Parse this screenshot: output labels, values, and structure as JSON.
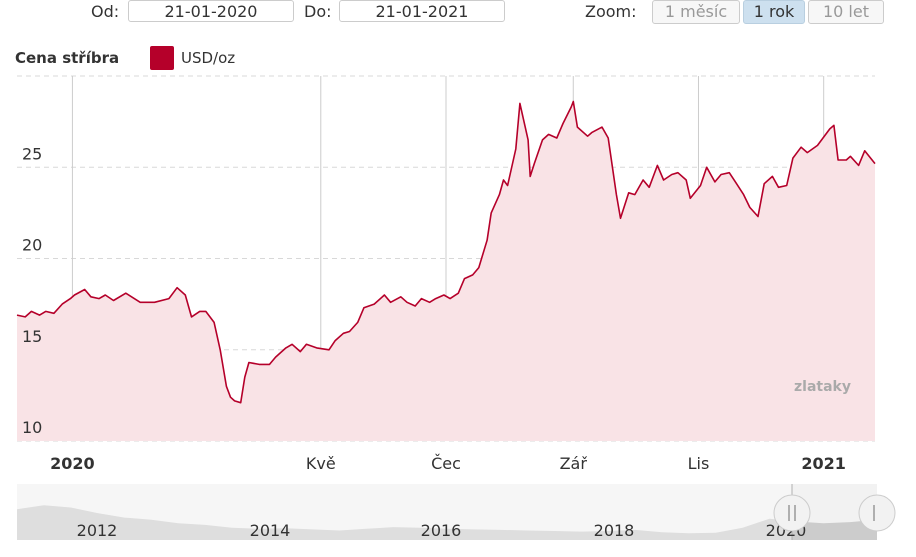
{
  "header": {
    "from_label": "Od:",
    "from_value": "21-01-2020",
    "to_label": "Do:",
    "to_value": "21-01-2021",
    "zoom_label": "Zoom:",
    "zoom_buttons": [
      {
        "label": "1 měsíc",
        "active": false
      },
      {
        "label": "1 rok",
        "active": true
      },
      {
        "label": "10 let",
        "active": false
      }
    ]
  },
  "legend": {
    "title": "Cena stříbra",
    "series_label": "USD/oz"
  },
  "watermark": "zlataky",
  "colors": {
    "line": "#b5002a",
    "fill": "#f9e3e6",
    "navigator_fill": "#cccccc"
  },
  "chart_data": {
    "type": "area",
    "series": [
      {
        "name": "USD/oz"
      }
    ],
    "yticks": [
      "10",
      "15",
      "20",
      "25"
    ],
    "ylim": [
      10,
      30
    ],
    "xlim": [
      "2019-12-05",
      "2021-01-26"
    ],
    "xticks": [
      {
        "date": "2020-01-01",
        "label": "2020",
        "bold": true
      },
      {
        "date": "2020-05-01",
        "label": "Kvě",
        "bold": false
      },
      {
        "date": "2020-07-01",
        "label": "Čec",
        "bold": false
      },
      {
        "date": "2020-09-01",
        "label": "Zář",
        "bold": false
      },
      {
        "date": "2020-11-01",
        "label": "Lis",
        "bold": false
      },
      {
        "date": "2021-01-01",
        "label": "2021",
        "bold": true
      }
    ],
    "grid": true,
    "legend_position": "top-left",
    "points": [
      [
        "2019-12-05",
        16.9
      ],
      [
        "2019-12-09",
        16.8
      ],
      [
        "2019-12-12",
        17.1
      ],
      [
        "2019-12-16",
        16.9
      ],
      [
        "2019-12-19",
        17.1
      ],
      [
        "2019-12-23",
        17.0
      ],
      [
        "2019-12-27",
        17.5
      ],
      [
        "2019-12-31",
        17.8
      ],
      [
        "2020-01-02",
        18.0
      ],
      [
        "2020-01-07",
        18.3
      ],
      [
        "2020-01-10",
        17.9
      ],
      [
        "2020-01-14",
        17.8
      ],
      [
        "2020-01-17",
        18.0
      ],
      [
        "2020-01-21",
        17.7
      ],
      [
        "2020-01-27",
        18.1
      ],
      [
        "2020-02-03",
        17.6
      ],
      [
        "2020-02-10",
        17.6
      ],
      [
        "2020-02-17",
        17.8
      ],
      [
        "2020-02-21",
        18.4
      ],
      [
        "2020-02-25",
        18.0
      ],
      [
        "2020-02-28",
        16.8
      ],
      [
        "2020-03-03",
        17.1
      ],
      [
        "2020-03-06",
        17.1
      ],
      [
        "2020-03-10",
        16.5
      ],
      [
        "2020-03-13",
        15.0
      ],
      [
        "2020-03-16",
        13.0
      ],
      [
        "2020-03-18",
        12.4
      ],
      [
        "2020-03-20",
        12.2
      ],
      [
        "2020-03-23",
        12.1
      ],
      [
        "2020-03-25",
        13.5
      ],
      [
        "2020-03-27",
        14.3
      ],
      [
        "2020-04-01",
        14.2
      ],
      [
        "2020-04-06",
        14.2
      ],
      [
        "2020-04-09",
        14.6
      ],
      [
        "2020-04-14",
        15.1
      ],
      [
        "2020-04-17",
        15.3
      ],
      [
        "2020-04-21",
        14.9
      ],
      [
        "2020-04-24",
        15.3
      ],
      [
        "2020-04-29",
        15.1
      ],
      [
        "2020-05-05",
        15.0
      ],
      [
        "2020-05-08",
        15.5
      ],
      [
        "2020-05-12",
        15.9
      ],
      [
        "2020-05-15",
        16.0
      ],
      [
        "2020-05-19",
        16.5
      ],
      [
        "2020-05-22",
        17.3
      ],
      [
        "2020-05-27",
        17.5
      ],
      [
        "2020-06-01",
        18.0
      ],
      [
        "2020-06-04",
        17.6
      ],
      [
        "2020-06-09",
        17.9
      ],
      [
        "2020-06-12",
        17.6
      ],
      [
        "2020-06-16",
        17.4
      ],
      [
        "2020-06-19",
        17.8
      ],
      [
        "2020-06-23",
        17.6
      ],
      [
        "2020-06-26",
        17.8
      ],
      [
        "2020-06-30",
        18.0
      ],
      [
        "2020-07-03",
        17.8
      ],
      [
        "2020-07-07",
        18.1
      ],
      [
        "2020-07-10",
        18.9
      ],
      [
        "2020-07-14",
        19.1
      ],
      [
        "2020-07-17",
        19.5
      ],
      [
        "2020-07-21",
        21.0
      ],
      [
        "2020-07-23",
        22.5
      ],
      [
        "2020-07-27",
        23.5
      ],
      [
        "2020-07-29",
        24.3
      ],
      [
        "2020-07-31",
        24.0
      ],
      [
        "2020-08-04",
        26.0
      ],
      [
        "2020-08-06",
        28.5
      ],
      [
        "2020-08-10",
        26.5
      ],
      [
        "2020-08-11",
        24.5
      ],
      [
        "2020-08-13",
        25.2
      ],
      [
        "2020-08-17",
        26.5
      ],
      [
        "2020-08-20",
        26.8
      ],
      [
        "2020-08-24",
        26.6
      ],
      [
        "2020-08-27",
        27.4
      ],
      [
        "2020-08-31",
        28.3
      ],
      [
        "2020-09-01",
        28.6
      ],
      [
        "2020-09-03",
        27.2
      ],
      [
        "2020-09-08",
        26.7
      ],
      [
        "2020-09-10",
        26.9
      ],
      [
        "2020-09-15",
        27.2
      ],
      [
        "2020-09-18",
        26.6
      ],
      [
        "2020-09-22",
        23.5
      ],
      [
        "2020-09-24",
        22.2
      ],
      [
        "2020-09-28",
        23.6
      ],
      [
        "2020-10-01",
        23.5
      ],
      [
        "2020-10-05",
        24.3
      ],
      [
        "2020-10-08",
        23.9
      ],
      [
        "2020-10-12",
        25.1
      ],
      [
        "2020-10-15",
        24.3
      ],
      [
        "2020-10-19",
        24.6
      ],
      [
        "2020-10-22",
        24.7
      ],
      [
        "2020-10-26",
        24.3
      ],
      [
        "2020-10-28",
        23.3
      ],
      [
        "2020-11-02",
        24.0
      ],
      [
        "2020-11-05",
        25.0
      ],
      [
        "2020-11-09",
        24.2
      ],
      [
        "2020-11-12",
        24.6
      ],
      [
        "2020-11-16",
        24.7
      ],
      [
        "2020-11-19",
        24.2
      ],
      [
        "2020-11-23",
        23.5
      ],
      [
        "2020-11-26",
        22.8
      ],
      [
        "2020-11-30",
        22.3
      ],
      [
        "2020-12-03",
        24.1
      ],
      [
        "2020-12-07",
        24.5
      ],
      [
        "2020-12-10",
        23.9
      ],
      [
        "2020-12-14",
        24.0
      ],
      [
        "2020-12-17",
        25.5
      ],
      [
        "2020-12-21",
        26.1
      ],
      [
        "2020-12-24",
        25.8
      ],
      [
        "2020-12-29",
        26.2
      ],
      [
        "2021-01-04",
        27.1
      ],
      [
        "2021-01-06",
        27.3
      ],
      [
        "2021-01-08",
        25.4
      ],
      [
        "2021-01-12",
        25.4
      ],
      [
        "2021-01-14",
        25.6
      ],
      [
        "2021-01-18",
        25.1
      ],
      [
        "2021-01-21",
        25.9
      ],
      [
        "2021-01-26",
        25.2
      ]
    ]
  },
  "navigator": {
    "year_labels": [
      "2012",
      "2014",
      "2016",
      "2018",
      "2020"
    ]
  }
}
